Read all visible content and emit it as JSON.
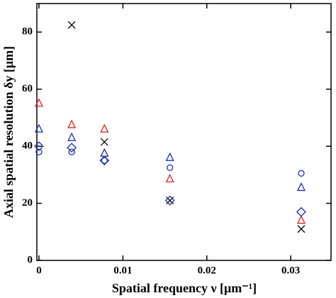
{
  "chart_data": {
    "type": "scatter",
    "xlabel": "Spatial frequency  ν  [μm⁻¹]",
    "ylabel": "Axial spatial resolution δy  [μm]",
    "xlim": [
      -0.00025,
      0.0348
    ],
    "ylim": [
      0,
      90
    ],
    "xticks": [
      0,
      0.01,
      0.02,
      0.03
    ],
    "yticks": [
      0,
      20,
      40,
      60,
      80
    ],
    "series": [
      {
        "marker": "cross",
        "color": "#000000",
        "x": [
          0.0039,
          0.0078,
          0.0156,
          0.03125
        ],
        "values": [
          82.5,
          41.5,
          21,
          11
        ]
      },
      {
        "marker": "triangle",
        "color": "#e0201b",
        "x": [
          0,
          0.0039,
          0.0078,
          0.0156,
          0.03125
        ],
        "values": [
          55,
          47.5,
          46,
          28.5,
          14
        ]
      },
      {
        "marker": "triangle",
        "color": "#1a2fa8",
        "x": [
          0,
          0.0039,
          0.0078,
          0.0156,
          0.03125
        ],
        "values": [
          46,
          43,
          37.5,
          36,
          25.5
        ]
      },
      {
        "marker": "circle",
        "color": "#1a2fa8",
        "x": [
          0,
          0.0039,
          0.0078,
          0.0156,
          0.03125
        ],
        "values": [
          38,
          38,
          35,
          32.5,
          30.5
        ]
      },
      {
        "marker": "diamond",
        "color": "#1a2fa8",
        "x": [
          0,
          0.0039,
          0.0078,
          0.0156,
          0.03125
        ],
        "values": [
          40,
          39.5,
          35,
          21,
          17
        ]
      }
    ]
  }
}
